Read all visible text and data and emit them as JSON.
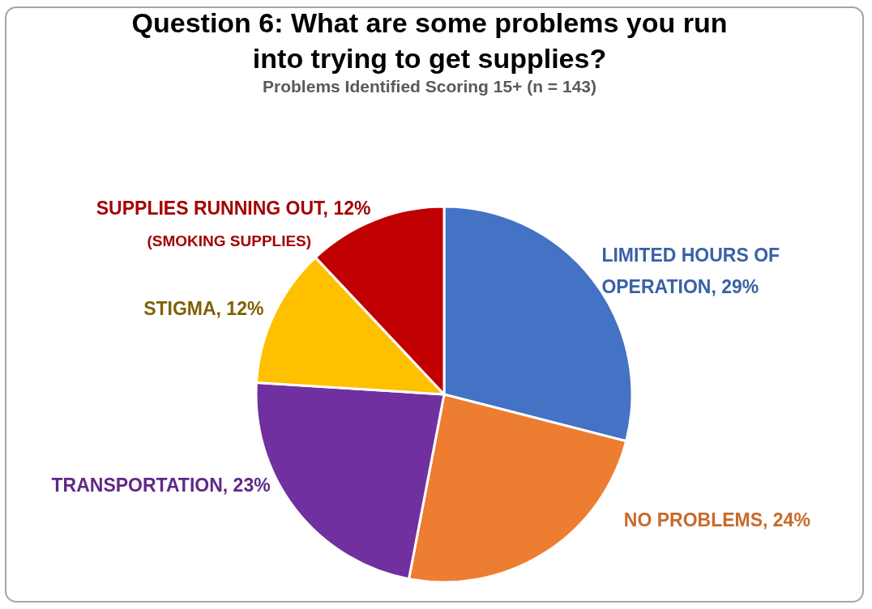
{
  "chart_data": {
    "type": "pie",
    "title": "Question 6: What are some problems you run into trying to get supplies?",
    "subtitle": "Problems Identified Scoring 15+  (n = 143)",
    "categories": [
      "LIMITED HOURS OF OPERATION, 29%",
      "NO PROBLEMS, 24%",
      "TRANSPORTATION, 23%",
      "STIGMA, 12%",
      "SUPPLIES RUNNING OUT, 12%"
    ],
    "values": [
      29,
      24,
      23,
      12,
      12
    ],
    "colors": [
      "#4472c4",
      "#ed7d31",
      "#7030a0",
      "#ffc000",
      "#c00000"
    ],
    "annotations": [
      "(SMOKING SUPPLIES)"
    ],
    "legend": false
  }
}
